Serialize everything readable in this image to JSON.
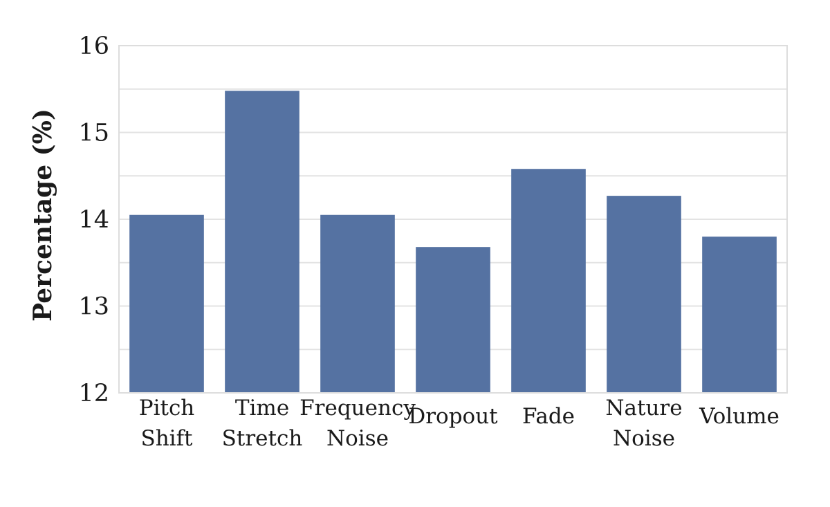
{
  "chart_data": {
    "type": "bar",
    "categories": [
      [
        "Pitch",
        "Shift"
      ],
      [
        "Time",
        "Stretch"
      ],
      [
        "Frequency",
        "Noise"
      ],
      [
        "Dropout"
      ],
      [
        "Fade"
      ],
      [
        "Nature",
        "Noise"
      ],
      [
        "Volume"
      ]
    ],
    "values": [
      14.05,
      15.48,
      14.05,
      13.68,
      14.58,
      14.27,
      13.8
    ],
    "ylabel": "Percentage (%)",
    "ylim": [
      12,
      16
    ],
    "yticks": [
      12,
      13,
      14,
      15,
      16
    ],
    "ytick_labels": [
      "12",
      "13",
      "14",
      "15",
      "16"
    ],
    "grid": true,
    "bar_color": "#5572a2",
    "grid_color": "#e3e3e3"
  }
}
